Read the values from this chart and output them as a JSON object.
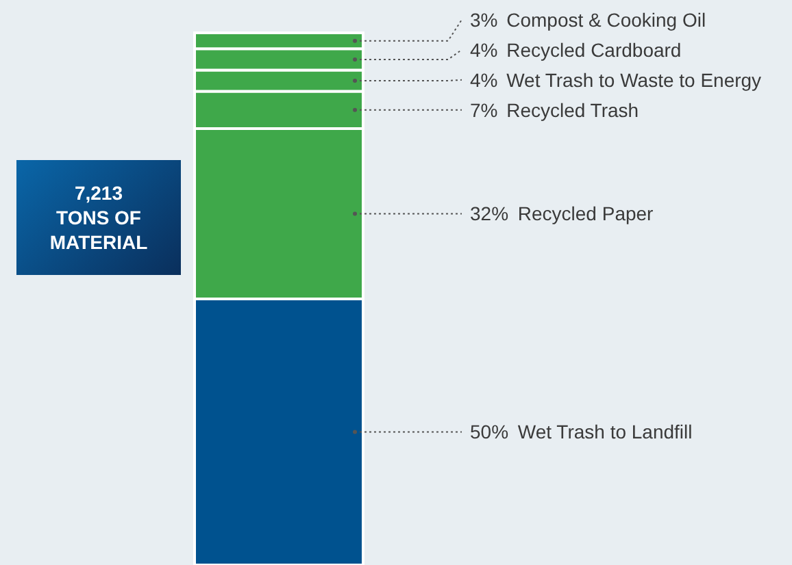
{
  "chart_data": {
    "type": "bar",
    "stacked": true,
    "categories": [
      null
    ],
    "series": [
      {
        "name": "Wet Trash to Landfill",
        "color": "#00528f",
        "values": [
          50
        ],
        "value_labels": [
          "50%"
        ]
      },
      {
        "name": "Recycled Paper",
        "color": "#3fa84a",
        "values": [
          32
        ],
        "value_labels": [
          "32%"
        ]
      },
      {
        "name": "Recycled Trash",
        "color": "#3fa84a",
        "values": [
          7
        ],
        "value_labels": [
          "7%"
        ]
      },
      {
        "name": "Wet Trash to Waste to Energy",
        "color": "#3fa84a",
        "values": [
          4
        ],
        "value_labels": [
          "4%"
        ]
      },
      {
        "name": "Recycled Cardboard",
        "color": "#3fa84a",
        "values": [
          4
        ],
        "value_labels": [
          "4%"
        ]
      },
      {
        "name": "Compost & Cooking Oil",
        "color": "#3fa84a",
        "values": [
          3
        ],
        "value_labels": [
          "3%"
        ]
      }
    ],
    "annotations": [
      "7,213 TONS OF MATERIAL"
    ]
  }
}
